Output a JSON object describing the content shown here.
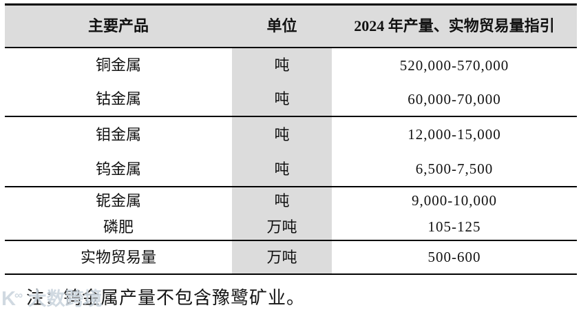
{
  "table": {
    "columns": {
      "product": "主要产品",
      "unit": "单位",
      "guidance": "2024 年产量、实物贸易量指引"
    },
    "rows": [
      {
        "product": "铜金属",
        "unit": "吨",
        "guidance": "520,000-570,000",
        "group_end": false
      },
      {
        "product": "钴金属",
        "unit": "吨",
        "guidance": "60,000-70,000",
        "group_end": true
      },
      {
        "product": "钼金属",
        "unit": "吨",
        "guidance": "12,000-15,000",
        "group_end": false
      },
      {
        "product": "钨金属",
        "unit": "吨",
        "guidance": "6,500-7,500",
        "group_end": true
      },
      {
        "product": "铌金属",
        "unit": "吨",
        "guidance": "9,000-10,000",
        "group_end": false
      },
      {
        "product": "磷肥",
        "unit": "万吨",
        "guidance": "105-125",
        "group_end": true
      },
      {
        "product": "实物贸易量",
        "unit": "万吨",
        "guidance": "500-600",
        "group_end": false
      }
    ]
  },
  "note": "注：钨金属产量不包含豫鹭矿业。",
  "watermark": {
    "logo": "K",
    "logo_sup": "∞",
    "text": "大数跨境"
  },
  "colors": {
    "header_bg": "#dcdcdc",
    "unit_column_bg": "#dcdcdc",
    "border": "#000000",
    "background": "#ffffff"
  }
}
